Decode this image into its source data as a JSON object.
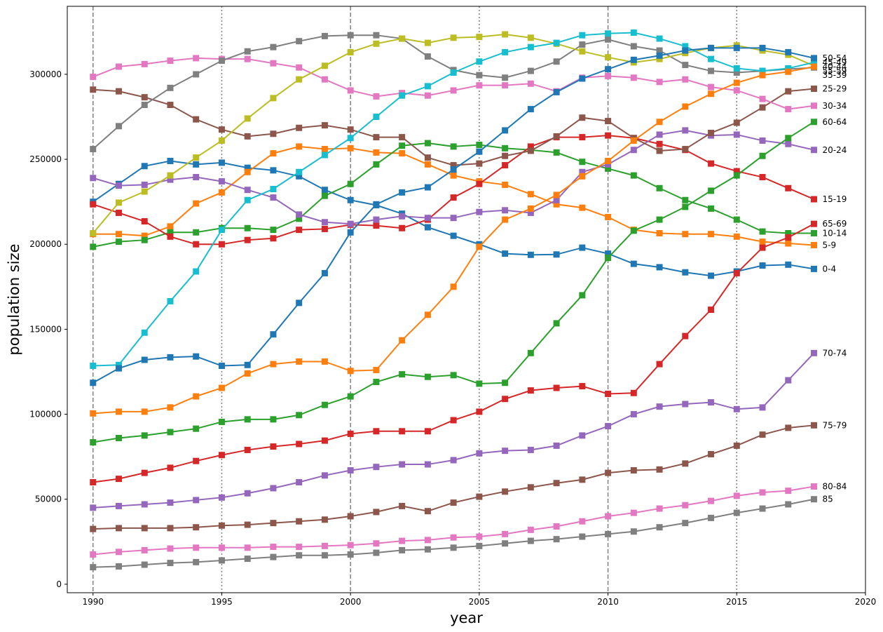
{
  "chart_data": {
    "type": "line",
    "title": "",
    "xlabel": "year",
    "ylabel": "population size",
    "xlim": [
      1989.0,
      2020
    ],
    "ylim": [
      -5000,
      340000
    ],
    "xticks": [
      1990,
      1995,
      2000,
      2005,
      2010,
      2015,
      2020
    ],
    "yticks": [
      0,
      50000,
      100000,
      150000,
      200000,
      250000,
      300000
    ],
    "vlines_dashed": [
      1990,
      2000,
      2010
    ],
    "vlines_dotted": [
      1995,
      2005,
      2015
    ],
    "marker": "square",
    "x": [
      1990,
      1991,
      1992,
      1993,
      1994,
      1995,
      1996,
      1997,
      1998,
      1999,
      2000,
      2001,
      2002,
      2003,
      2004,
      2005,
      2006,
      2007,
      2008,
      2009,
      2010,
      2011,
      2012,
      2013,
      2014,
      2015,
      2016,
      2017,
      2018
    ],
    "series": [
      {
        "name": "0-4",
        "color": "#1f77b4",
        "values": [
          225000,
          235500,
          246000,
          249000,
          247000,
          248000,
          245000,
          243500,
          240000,
          232000,
          226000,
          223000,
          218000,
          210000,
          205000,
          200000,
          194500,
          193800,
          194000,
          198000,
          194500,
          188500,
          186500,
          183500,
          181500,
          184000,
          187500,
          188000,
          185500
        ]
      },
      {
        "name": "5-9",
        "color": "#ff7f0e",
        "values": [
          206000,
          206000,
          205000,
          210500,
          224000,
          230500,
          242500,
          253500,
          257500,
          256000,
          256500,
          254000,
          253500,
          247000,
          240500,
          237000,
          235000,
          229500,
          223500,
          221500,
          216000,
          208500,
          206500,
          206000,
          206000,
          204500,
          201500,
          200500,
          199500
        ]
      },
      {
        "name": "10-14",
        "color": "#2ca02c",
        "values": [
          198500,
          201500,
          202500,
          207000,
          207000,
          209500,
          209500,
          208500,
          215000,
          228500,
          235500,
          247000,
          258000,
          259500,
          257500,
          258500,
          256500,
          255500,
          254000,
          248500,
          244500,
          240500,
          233000,
          226000,
          221000,
          214500,
          207500,
          206500,
          206500
        ]
      },
      {
        "name": "15-19",
        "color": "#d62728",
        "values": [
          223500,
          218500,
          213500,
          204500,
          200000,
          200000,
          202500,
          203500,
          208500,
          209000,
          211500,
          211000,
          209500,
          214500,
          227500,
          235500,
          246500,
          257500,
          263000,
          263000,
          264000,
          262500,
          259000,
          255500,
          247500,
          243000,
          239500,
          233000,
          226500
        ]
      },
      {
        "name": "20-24",
        "color": "#9467bd",
        "values": [
          239000,
          234500,
          235000,
          238000,
          239500,
          237000,
          232000,
          227500,
          217500,
          213000,
          212000,
          214500,
          216500,
          215500,
          215500,
          219000,
          220000,
          218500,
          226000,
          242500,
          247000,
          255500,
          264500,
          267000,
          264000,
          264500,
          261000,
          259000,
          255500
        ]
      },
      {
        "name": "25-29",
        "color": "#8c564b",
        "values": [
          291000,
          290000,
          286500,
          282000,
          273500,
          267500,
          263500,
          265000,
          268500,
          270000,
          267500,
          263000,
          263000,
          251000,
          246500,
          247500,
          252000,
          255000,
          263500,
          274500,
          272500,
          262500,
          255000,
          256000,
          265500,
          271500,
          280500,
          290000,
          291500
        ]
      },
      {
        "name": "30-34",
        "color": "#e377c2",
        "values": [
          298500,
          304500,
          306000,
          308000,
          309500,
          309000,
          309000,
          306500,
          304000,
          297000,
          290500,
          287000,
          289000,
          287500,
          290500,
          293500,
          293500,
          294500,
          290000,
          298000,
          299000,
          298000,
          295500,
          297000,
          292500,
          290500,
          285500,
          279500,
          281500
        ]
      },
      {
        "name": "35-39",
        "color": "#7f7f7f",
        "values": [
          256000,
          269500,
          282000,
          292000,
          300000,
          308000,
          313500,
          316000,
          319500,
          322500,
          323000,
          323000,
          321000,
          310500,
          302500,
          299500,
          298000,
          302000,
          307500,
          317500,
          320500,
          316500,
          314000,
          305500,
          302000,
          301000,
          302000,
          303000,
          304000
        ]
      },
      {
        "name": "40-44",
        "color": "#bcbd22",
        "values": [
          206500,
          224500,
          231000,
          240500,
          251000,
          261000,
          274000,
          286000,
          297000,
          305000,
          313000,
          318000,
          321000,
          318500,
          321500,
          322000,
          323500,
          321500,
          318000,
          313500,
          310000,
          307000,
          309000,
          312500,
          315500,
          317000,
          314000,
          311500,
          305000
        ]
      },
      {
        "name": "45-49",
        "color": "#17becf",
        "values": [
          128500,
          129000,
          148000,
          166500,
          184000,
          208500,
          226000,
          232500,
          242500,
          252500,
          262500,
          275000,
          287500,
          293000,
          301000,
          307500,
          313000,
          316000,
          318500,
          323000,
          324000,
          324500,
          321000,
          316500,
          309000,
          303500,
          302000,
          303500,
          307000
        ]
      },
      {
        "name": "50-54",
        "color": "#1f77b4",
        "values": [
          118500,
          127000,
          132000,
          133500,
          134000,
          128500,
          129000,
          147000,
          165500,
          183000,
          207000,
          223500,
          230500,
          233500,
          244000,
          254500,
          267000,
          279500,
          289500,
          297500,
          303000,
          308500,
          311000,
          314000,
          315500,
          315500,
          315500,
          313000,
          309500
        ]
      },
      {
        "name": "55-59",
        "color": "#ff7f0e",
        "values": [
          100500,
          101500,
          101500,
          104000,
          110500,
          115500,
          124000,
          129500,
          131000,
          131000,
          125500,
          126000,
          143500,
          158500,
          175000,
          198500,
          214500,
          221000,
          229000,
          240000,
          249000,
          261000,
          272000,
          281000,
          288500,
          295000,
          299500,
          301500,
          304500
        ]
      },
      {
        "name": "60-64",
        "color": "#2ca02c",
        "values": [
          83500,
          86000,
          87500,
          89500,
          91500,
          95500,
          97000,
          97000,
          99500,
          105500,
          110500,
          119000,
          123500,
          122000,
          123000,
          118000,
          118500,
          136000,
          153500,
          170000,
          192000,
          208000,
          214500,
          222000,
          231500,
          240500,
          252000,
          262500,
          272000
        ]
      },
      {
        "name": "65-69",
        "color": "#d62728",
        "values": [
          60000,
          62000,
          65500,
          68500,
          72500,
          76000,
          79000,
          81000,
          82500,
          84500,
          88500,
          90000,
          90000,
          90000,
          96500,
          101500,
          109000,
          114000,
          115500,
          116500,
          112000,
          112500,
          129500,
          146000,
          161500,
          183000,
          198000,
          204000,
          212000
        ]
      },
      {
        "name": "70-74",
        "color": "#9467bd",
        "values": [
          45000,
          46000,
          47000,
          48000,
          49500,
          51000,
          53500,
          56500,
          60000,
          64000,
          67000,
          69000,
          70500,
          70500,
          73000,
          77000,
          78500,
          79000,
          81500,
          87500,
          93000,
          100000,
          104500,
          106000,
          107000,
          103000,
          104000,
          120000,
          136000
        ]
      },
      {
        "name": "75-79",
        "color": "#8c564b",
        "values": [
          32500,
          33000,
          33000,
          33000,
          33500,
          34500,
          35000,
          36000,
          37000,
          38000,
          40000,
          42500,
          46000,
          43000,
          48000,
          51500,
          54500,
          57000,
          59500,
          61500,
          65500,
          67000,
          67500,
          71000,
          76500,
          81500,
          88000,
          92000,
          93500
        ]
      },
      {
        "name": "80-84",
        "color": "#e377c2",
        "values": [
          17500,
          19000,
          20000,
          21000,
          21500,
          21500,
          21500,
          22000,
          22000,
          22500,
          23000,
          24000,
          25500,
          26000,
          27500,
          28000,
          29500,
          32000,
          34000,
          37000,
          40000,
          42000,
          44500,
          46500,
          49000,
          52000,
          54000,
          55000,
          57500
        ]
      },
      {
        "name": "85",
        "color": "#7f7f7f",
        "values": [
          10000,
          10500,
          11500,
          12500,
          13000,
          14000,
          15000,
          16000,
          17000,
          17000,
          17500,
          18500,
          20000,
          20500,
          21500,
          22500,
          24000,
          25500,
          26500,
          28000,
          29500,
          31000,
          33500,
          36000,
          39000,
          42000,
          44500,
          47000,
          50000
        ]
      }
    ]
  }
}
